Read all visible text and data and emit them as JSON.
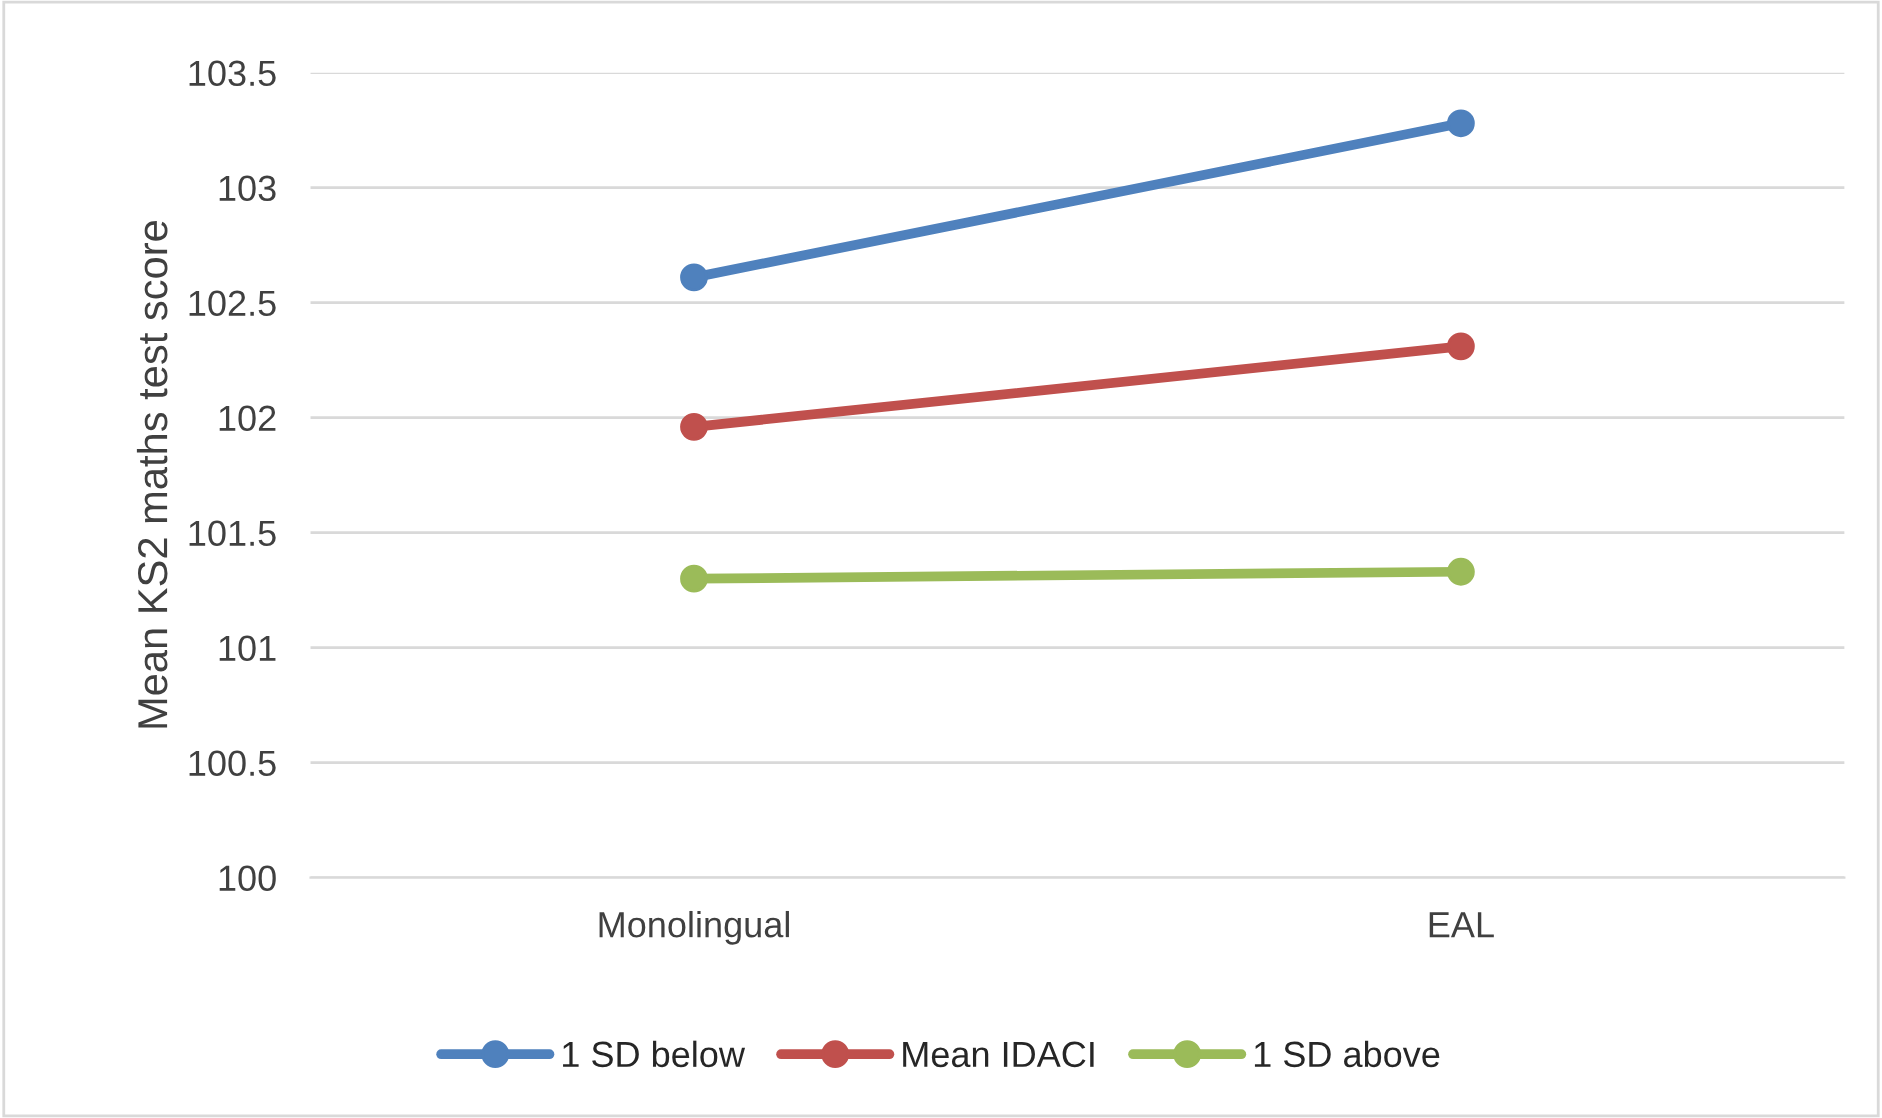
{
  "chart_data": {
    "type": "line",
    "ylabel": "Mean KS2 maths test score",
    "categories": [
      "Monolingual",
      "EAL"
    ],
    "series": [
      {
        "name": "1 SD below",
        "color": "#4f81bd",
        "values": [
          102.61,
          103.28
        ]
      },
      {
        "name": "Mean IDACI",
        "color": "#c0504d",
        "values": [
          101.96,
          102.31
        ]
      },
      {
        "name": "1 SD above",
        "color": "#9bbb59",
        "values": [
          101.3,
          101.33
        ]
      }
    ],
    "ylim": [
      100,
      103.5
    ],
    "yticks": [
      100,
      100.5,
      101,
      101.5,
      102,
      102.5,
      103,
      103.5
    ],
    "grid": "y",
    "legend": "bottom",
    "marker": "circle",
    "line_style": "solid"
  }
}
